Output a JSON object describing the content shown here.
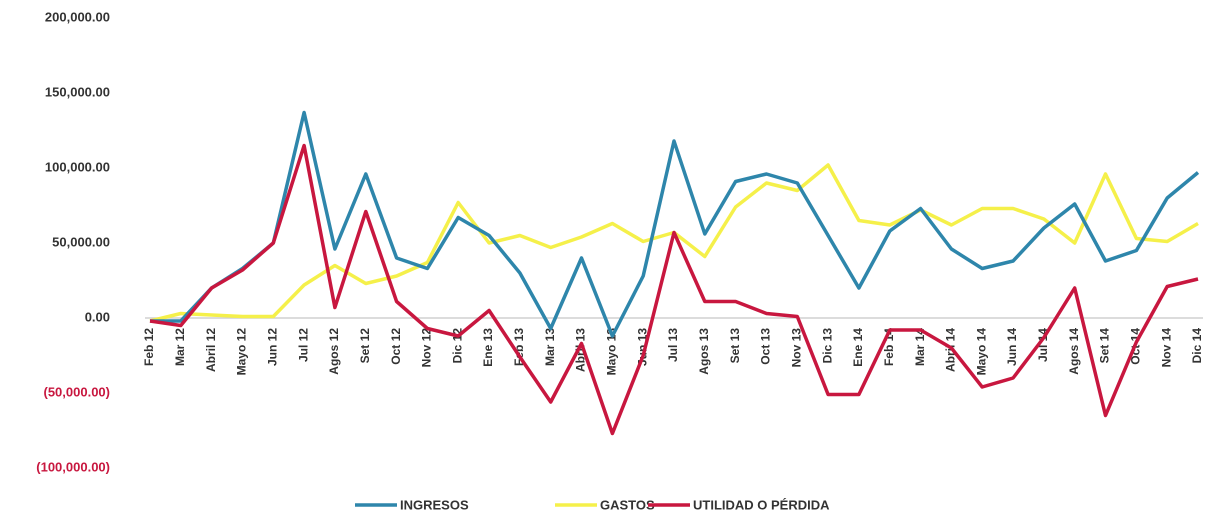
{
  "chart_data": {
    "type": "line",
    "categories": [
      "Feb 12",
      "Mar 12",
      "Abril 12",
      "Mayo 12",
      "Jun 12",
      "Jul 12",
      "Agos 12",
      "Set 12",
      "Oct 12",
      "Nov 12",
      "Dic 12",
      "Ene 13",
      "Feb 13",
      "Mar 13",
      "Abril 13",
      "Mayo 13",
      "Jun 13",
      "Jul 13",
      "Agos 13",
      "Set 13",
      "Oct 13",
      "Nov 13",
      "Dic 13",
      "Ene 14",
      "Feb 14",
      "Mar 14",
      "Abril 14",
      "Mayo 14",
      "Jun 14",
      "Jul 14",
      "Agos 14",
      "Set 14",
      "Oct 14",
      "Nov 14",
      "Dic 14"
    ],
    "series": [
      {
        "name": "INGRESOS",
        "color": "#2e86ab",
        "values": [
          -2000,
          -2000,
          20000,
          33000,
          50000,
          137000,
          46000,
          96000,
          40000,
          33000,
          67000,
          55000,
          30000,
          -7000,
          40000,
          -12000,
          28000,
          118000,
          56000,
          91000,
          96000,
          90000,
          55000,
          20000,
          58000,
          73000,
          46000,
          33000,
          38000,
          60000,
          76000,
          38000,
          45000,
          80000,
          97000
        ]
      },
      {
        "name": "GASTOS",
        "color": "#f5f04a",
        "values": [
          -2000,
          3000,
          2000,
          1000,
          1000,
          22000,
          35000,
          23000,
          28000,
          37000,
          77000,
          50000,
          55000,
          47000,
          54000,
          63000,
          51000,
          57000,
          41000,
          74000,
          90000,
          85000,
          102000,
          65000,
          62000,
          72000,
          62000,
          73000,
          73000,
          66000,
          50000,
          96000,
          53000,
          51000,
          63000
        ]
      },
      {
        "name": "UTILIDAD O PÉRDIDA",
        "color": "#c8173f",
        "values": [
          -2000,
          -5000,
          20000,
          32000,
          50000,
          115000,
          7000,
          71000,
          11000,
          -7000,
          -12000,
          5000,
          -26000,
          -56000,
          -17000,
          -77000,
          -25000,
          57000,
          11000,
          11000,
          3000,
          1000,
          -51000,
          -51000,
          -8000,
          -8000,
          -20000,
          -46000,
          -40000,
          -13000,
          20000,
          -65000,
          -16000,
          21000,
          26000
        ]
      }
    ],
    "ylim": [
      -100000,
      200000
    ],
    "yticks": [
      {
        "value": -100000,
        "label": "(100,000.00)"
      },
      {
        "value": -50000,
        "label": "(50,000.00)"
      },
      {
        "value": 0,
        "label": "0.00"
      },
      {
        "value": 50000,
        "label": "50,000.00"
      },
      {
        "value": 100000,
        "label": "100,000.00"
      },
      {
        "value": 150000,
        "label": "150,000.00"
      },
      {
        "value": 200000,
        "label": "200,000.00"
      }
    ],
    "negative_tick_color": "#c8173f",
    "legend": "bottom"
  }
}
